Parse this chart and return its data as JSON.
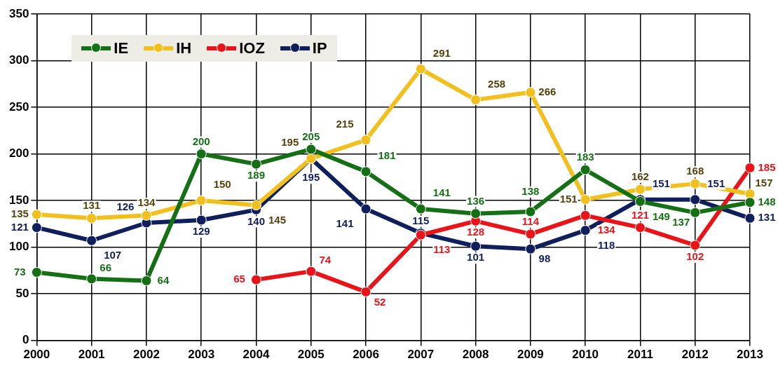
{
  "chart_data": {
    "type": "line",
    "categories": [
      "2000",
      "2001",
      "2002",
      "2003",
      "2004",
      "2005",
      "2006",
      "2007",
      "2008",
      "2009",
      "2010",
      "2011",
      "2012",
      "2013"
    ],
    "series": [
      {
        "name": "IE",
        "color": "#157015",
        "values": [
          73,
          66,
          64,
          200,
          189,
          205,
          181,
          141,
          136,
          138,
          183,
          149,
          137,
          148
        ]
      },
      {
        "name": "IH",
        "color": "#f2c01e",
        "values": [
          135,
          131,
          134,
          150,
          145,
          195,
          215,
          291,
          258,
          266,
          151,
          162,
          168,
          157
        ]
      },
      {
        "name": "IOZ",
        "color": "#e8141a",
        "values": [
          null,
          null,
          null,
          null,
          65,
          74,
          52,
          113,
          128,
          114,
          134,
          121,
          102,
          185
        ]
      },
      {
        "name": "IP",
        "color": "#0f1f5c",
        "values": [
          121,
          107,
          126,
          129,
          140,
          195,
          141,
          115,
          101,
          98,
          118,
          151,
          151,
          131
        ]
      }
    ],
    "ylim": [
      0,
      350
    ],
    "yticks": [
      0,
      50,
      100,
      150,
      200,
      250,
      300,
      350
    ],
    "grid": true,
    "legend": "top left",
    "marker": "circle",
    "data_labels": true
  }
}
